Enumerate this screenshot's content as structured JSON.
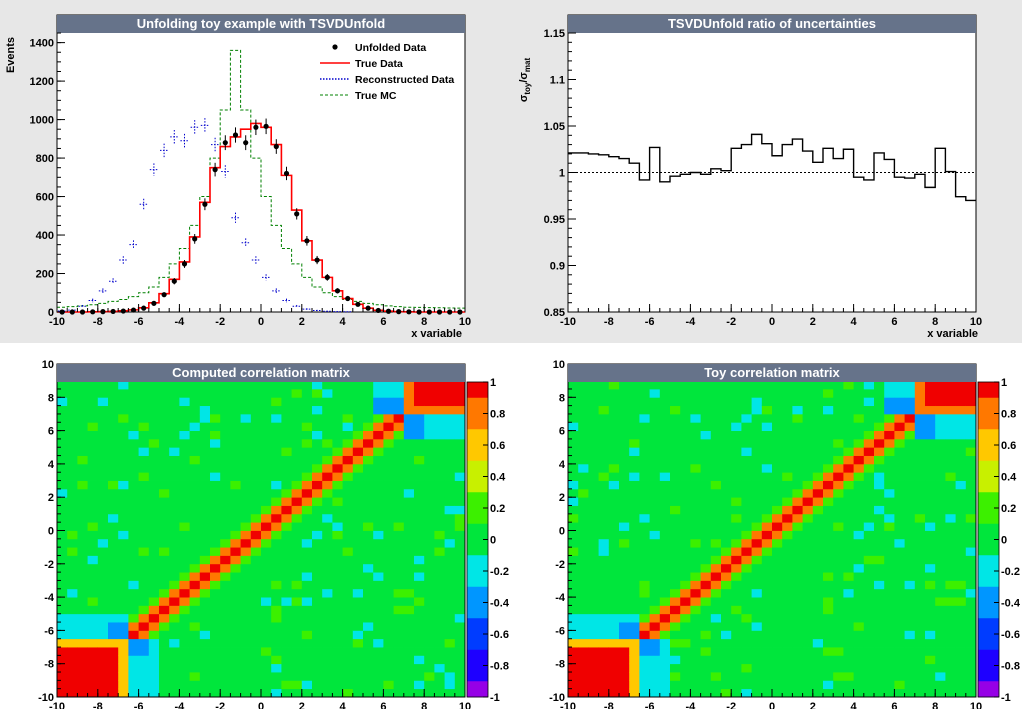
{
  "chart_data": [
    {
      "type": "line",
      "title": "Unfolding toy example with TSVDUnfold",
      "xlabel": "x variable",
      "ylabel": "Events",
      "xlim": [
        -10,
        10
      ],
      "ylim": [
        0,
        1450
      ],
      "x_ticks": [
        "-10",
        "-8",
        "-6",
        "-4",
        "-2",
        "0",
        "2",
        "4",
        "6",
        "8",
        "10"
      ],
      "y_ticks": [
        "0",
        "200",
        "400",
        "600",
        "800",
        "1000",
        "1200",
        "1400"
      ],
      "legend_position": "top-right",
      "colors": {
        "unfolded": "#000000",
        "true_data": "#ff0000",
        "reco": "#0000cc",
        "true_mc": "#008000",
        "title_bar": "#66738a",
        "background": "#e7e7e7"
      },
      "bin_edges": [
        -10,
        -9.5,
        -9,
        -8.5,
        -8,
        -7.5,
        -7,
        -6.5,
        -6,
        -5.5,
        -5,
        -4.5,
        -4,
        -3.5,
        -3,
        -2.5,
        -2,
        -1.5,
        -1,
        -0.5,
        0,
        0.5,
        1,
        1.5,
        2,
        2.5,
        3,
        3.5,
        4,
        4.5,
        5,
        5.5,
        6,
        6.5,
        7,
        7.5,
        8,
        8.5,
        9,
        9.5,
        10
      ],
      "series": [
        {
          "name": "Unfolded Data",
          "style": "markers",
          "values": [
            0,
            0,
            0,
            1,
            2,
            3,
            5,
            10,
            20,
            45,
            90,
            160,
            250,
            380,
            560,
            740,
            880,
            920,
            880,
            960,
            965,
            860,
            720,
            510,
            370,
            270,
            180,
            110,
            70,
            40,
            20,
            8,
            4,
            2,
            1,
            0,
            0,
            0,
            0,
            0
          ]
        },
        {
          "name": "True Data",
          "style": "step",
          "values": [
            0,
            0,
            0,
            1,
            2,
            3,
            6,
            11,
            22,
            48,
            95,
            170,
            260,
            390,
            570,
            750,
            860,
            910,
            950,
            980,
            960,
            870,
            710,
            530,
            370,
            270,
            180,
            110,
            70,
            40,
            20,
            9,
            4,
            2,
            1,
            0,
            0,
            0,
            0,
            0
          ]
        },
        {
          "name": "Reconstructed Data",
          "style": "dotted-markers",
          "values": [
            5,
            10,
            30,
            60,
            110,
            160,
            270,
            350,
            560,
            740,
            840,
            910,
            890,
            960,
            970,
            870,
            730,
            490,
            360,
            270,
            180,
            110,
            60,
            30,
            15,
            8,
            4,
            2,
            1,
            0,
            0,
            0,
            0,
            0,
            0,
            0,
            0,
            0,
            0,
            0
          ]
        },
        {
          "name": "True MC",
          "style": "dashed-step",
          "values": [
            25,
            28,
            32,
            38,
            45,
            55,
            65,
            80,
            100,
            130,
            180,
            250,
            330,
            450,
            600,
            800,
            1050,
            1360,
            1050,
            800,
            600,
            450,
            330,
            250,
            180,
            130,
            100,
            80,
            65,
            55,
            45,
            38,
            32,
            28,
            25,
            24,
            23,
            22,
            21,
            20
          ]
        }
      ]
    },
    {
      "type": "line",
      "title": "TSVDUnfold ratio of uncertainties",
      "xlabel": "x variable",
      "ylabel": "σtoy/σmat",
      "ylabel_main": "σ",
      "ylabel_sub1": "toy",
      "ylabel_slash": "/σ",
      "ylabel_sub2": "mat",
      "xlim": [
        -10,
        10
      ],
      "ylim": [
        0.85,
        1.15
      ],
      "x_ticks": [
        "-10",
        "-8",
        "-6",
        "-4",
        "-2",
        "0",
        "2",
        "4",
        "6",
        "8",
        "10"
      ],
      "y_ticks": [
        "0.85",
        "0.9",
        "0.95",
        "1",
        "1.05",
        "1.1",
        "1.15"
      ],
      "reference_line": 1,
      "bin_edges": [
        -10,
        -9.5,
        -9,
        -8.5,
        -8,
        -7.5,
        -7,
        -6.5,
        -6,
        -5.5,
        -5,
        -4.5,
        -4,
        -3.5,
        -3,
        -2.5,
        -2,
        -1.5,
        -1,
        -0.5,
        0,
        0.5,
        1,
        1.5,
        2,
        2.5,
        3,
        3.5,
        4,
        4.5,
        5,
        5.5,
        6,
        6.5,
        7,
        7.5,
        8,
        8.5,
        9,
        9.5,
        10
      ],
      "values": [
        1.021,
        1.021,
        1.02,
        1.019,
        1.017,
        1.015,
        1.01,
        0.992,
        1.027,
        0.99,
        0.996,
        0.998,
        1.0,
        0.998,
        1.004,
        1.002,
        1.026,
        1.03,
        1.041,
        1.031,
        1.018,
        1.03,
        1.036,
        1.023,
        1.011,
        1.026,
        1.015,
        1.025,
        0.995,
        0.992,
        1.021,
        1.014,
        0.995,
        0.994,
        0.998,
        0.984,
        1.026,
        1.001,
        0.974,
        0.97
      ]
    },
    {
      "type": "heatmap",
      "title": "Computed correlation matrix",
      "xlim": [
        -10,
        10
      ],
      "ylim": [
        -10,
        10
      ],
      "x_ticks": [
        "-10",
        "-8",
        "-6",
        "-4",
        "-2",
        "0",
        "2",
        "4",
        "6",
        "8",
        "10"
      ],
      "y_ticks": [
        "-10",
        "-8",
        "-6",
        "-4",
        "-2",
        "0",
        "2",
        "4",
        "6",
        "8",
        "10"
      ],
      "zlim": [
        -1,
        1
      ],
      "z_ticks": [
        "1",
        "0.8",
        "0.6",
        "0.4",
        "0.2",
        "0",
        "-0.2",
        "-0.4",
        "-0.6",
        "-0.8",
        "-1"
      ],
      "bins": 40,
      "description_values": {
        "diagonal": 1.0,
        "near_diagonal": 0.6,
        "background": 0.0,
        "low_corner_block": 1.0,
        "high_corner_block": 1.0,
        "edge_anticorrelation": -0.5
      }
    },
    {
      "type": "heatmap",
      "title": "Toy correlation matrix",
      "xlim": [
        -10,
        10
      ],
      "ylim": [
        -10,
        10
      ],
      "x_ticks": [
        "-10",
        "-8",
        "-6",
        "-4",
        "-2",
        "0",
        "2",
        "4",
        "6",
        "8",
        "10"
      ],
      "y_ticks": [
        "-10",
        "-8",
        "-6",
        "-4",
        "-2",
        "0",
        "2",
        "4",
        "6",
        "8",
        "10"
      ],
      "zlim": [
        -1,
        1
      ],
      "z_ticks": [
        "1",
        "0.8",
        "0.6",
        "0.4",
        "0.2",
        "0",
        "-0.2",
        "-0.4",
        "-0.6",
        "-0.8",
        "-1"
      ],
      "bins": 40,
      "description_values": {
        "diagonal": 1.0,
        "near_diagonal": 0.6,
        "background": 0.0,
        "low_corner_block": 1.0,
        "high_corner_block": 1.0,
        "edge_anticorrelation": -0.5
      }
    }
  ]
}
